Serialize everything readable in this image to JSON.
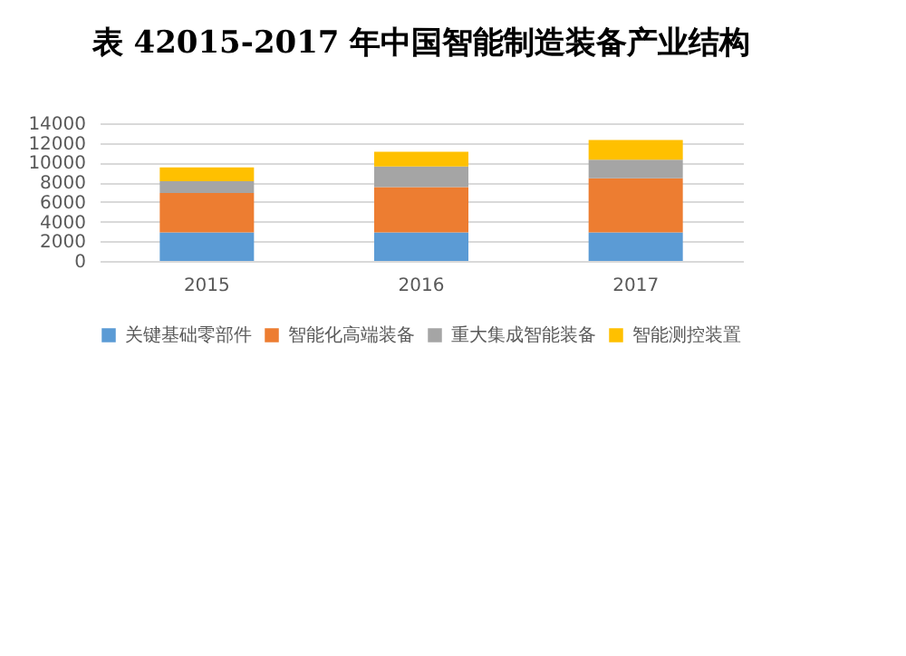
{
  "chart_data": {
    "type": "bar",
    "title": "表 42015-2017 年中国智能制造装备产业结构",
    "categories": [
      "2015",
      "2016",
      "2017"
    ],
    "stacked": true,
    "series": [
      {
        "name": "关键基础零部件",
        "color": "#5b9bd5",
        "values": [
          2900,
          2900,
          2900
        ]
      },
      {
        "name": "智能化高端装备",
        "color": "#ed7d31",
        "values": [
          4000,
          4600,
          5500
        ]
      },
      {
        "name": "重大集成智能装备",
        "color": "#a5a5a5",
        "values": [
          1200,
          2100,
          1900
        ]
      },
      {
        "name": "智能测控装置",
        "color": "#ffc000",
        "values": [
          1400,
          1500,
          2000
        ]
      }
    ],
    "ylim": [
      0,
      14000
    ],
    "yticks": [
      0,
      2000,
      4000,
      6000,
      8000,
      10000,
      12000,
      14000
    ],
    "grid": "y",
    "legend": "bottom"
  }
}
